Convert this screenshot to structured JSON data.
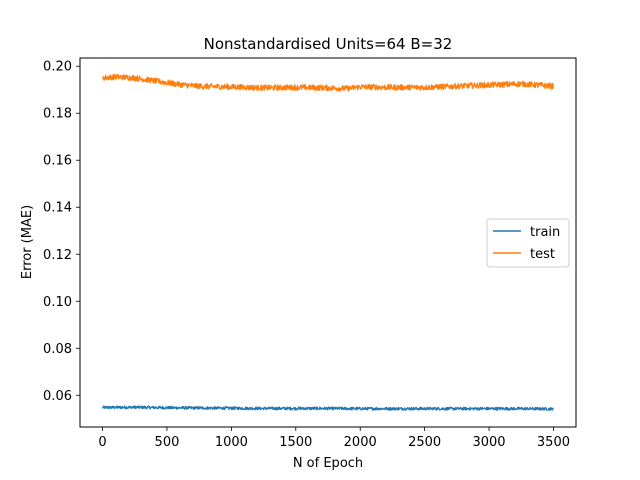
{
  "chart_data": {
    "type": "line",
    "title": "Nonstandardised Units=64 B=32",
    "xlabel": "N of Epoch",
    "ylabel": "Error (MAE)",
    "xlim": [
      -175,
      3675
    ],
    "ylim": [
      0.0465,
      0.2035
    ],
    "xticks": [
      0,
      500,
      1000,
      1500,
      2000,
      2500,
      3000,
      3500
    ],
    "yticks": [
      0.06,
      0.08,
      0.1,
      0.12,
      0.14,
      0.16,
      0.18,
      0.2
    ],
    "ytick_labels": [
      "0.06",
      "0.08",
      "0.10",
      "0.12",
      "0.14",
      "0.16",
      "0.18",
      "0.20"
    ],
    "grid": false,
    "legend_position": "center-right",
    "series": [
      {
        "name": "train",
        "color": "#1f77b4",
        "x": [
          0,
          250,
          500,
          750,
          1000,
          1250,
          1500,
          1750,
          2000,
          2250,
          2500,
          2750,
          3000,
          3250,
          3500
        ],
        "values": [
          0.0548,
          0.0549,
          0.0547,
          0.0546,
          0.0545,
          0.0544,
          0.0544,
          0.0544,
          0.0543,
          0.0543,
          0.0543,
          0.0543,
          0.0543,
          0.0543,
          0.0542
        ],
        "noise": 0.0006
      },
      {
        "name": "test",
        "color": "#ff7f0e",
        "x": [
          0,
          100,
          250,
          400,
          500,
          600,
          750,
          1000,
          1250,
          1500,
          1750,
          1900,
          2000,
          2250,
          2500,
          2750,
          3000,
          3250,
          3500
        ],
        "values": [
          0.195,
          0.1955,
          0.195,
          0.1938,
          0.193,
          0.1922,
          0.1915,
          0.1912,
          0.1908,
          0.191,
          0.1908,
          0.1905,
          0.1912,
          0.191,
          0.191,
          0.1915,
          0.192,
          0.1925,
          0.1915
        ],
        "noise": 0.0012
      }
    ]
  }
}
